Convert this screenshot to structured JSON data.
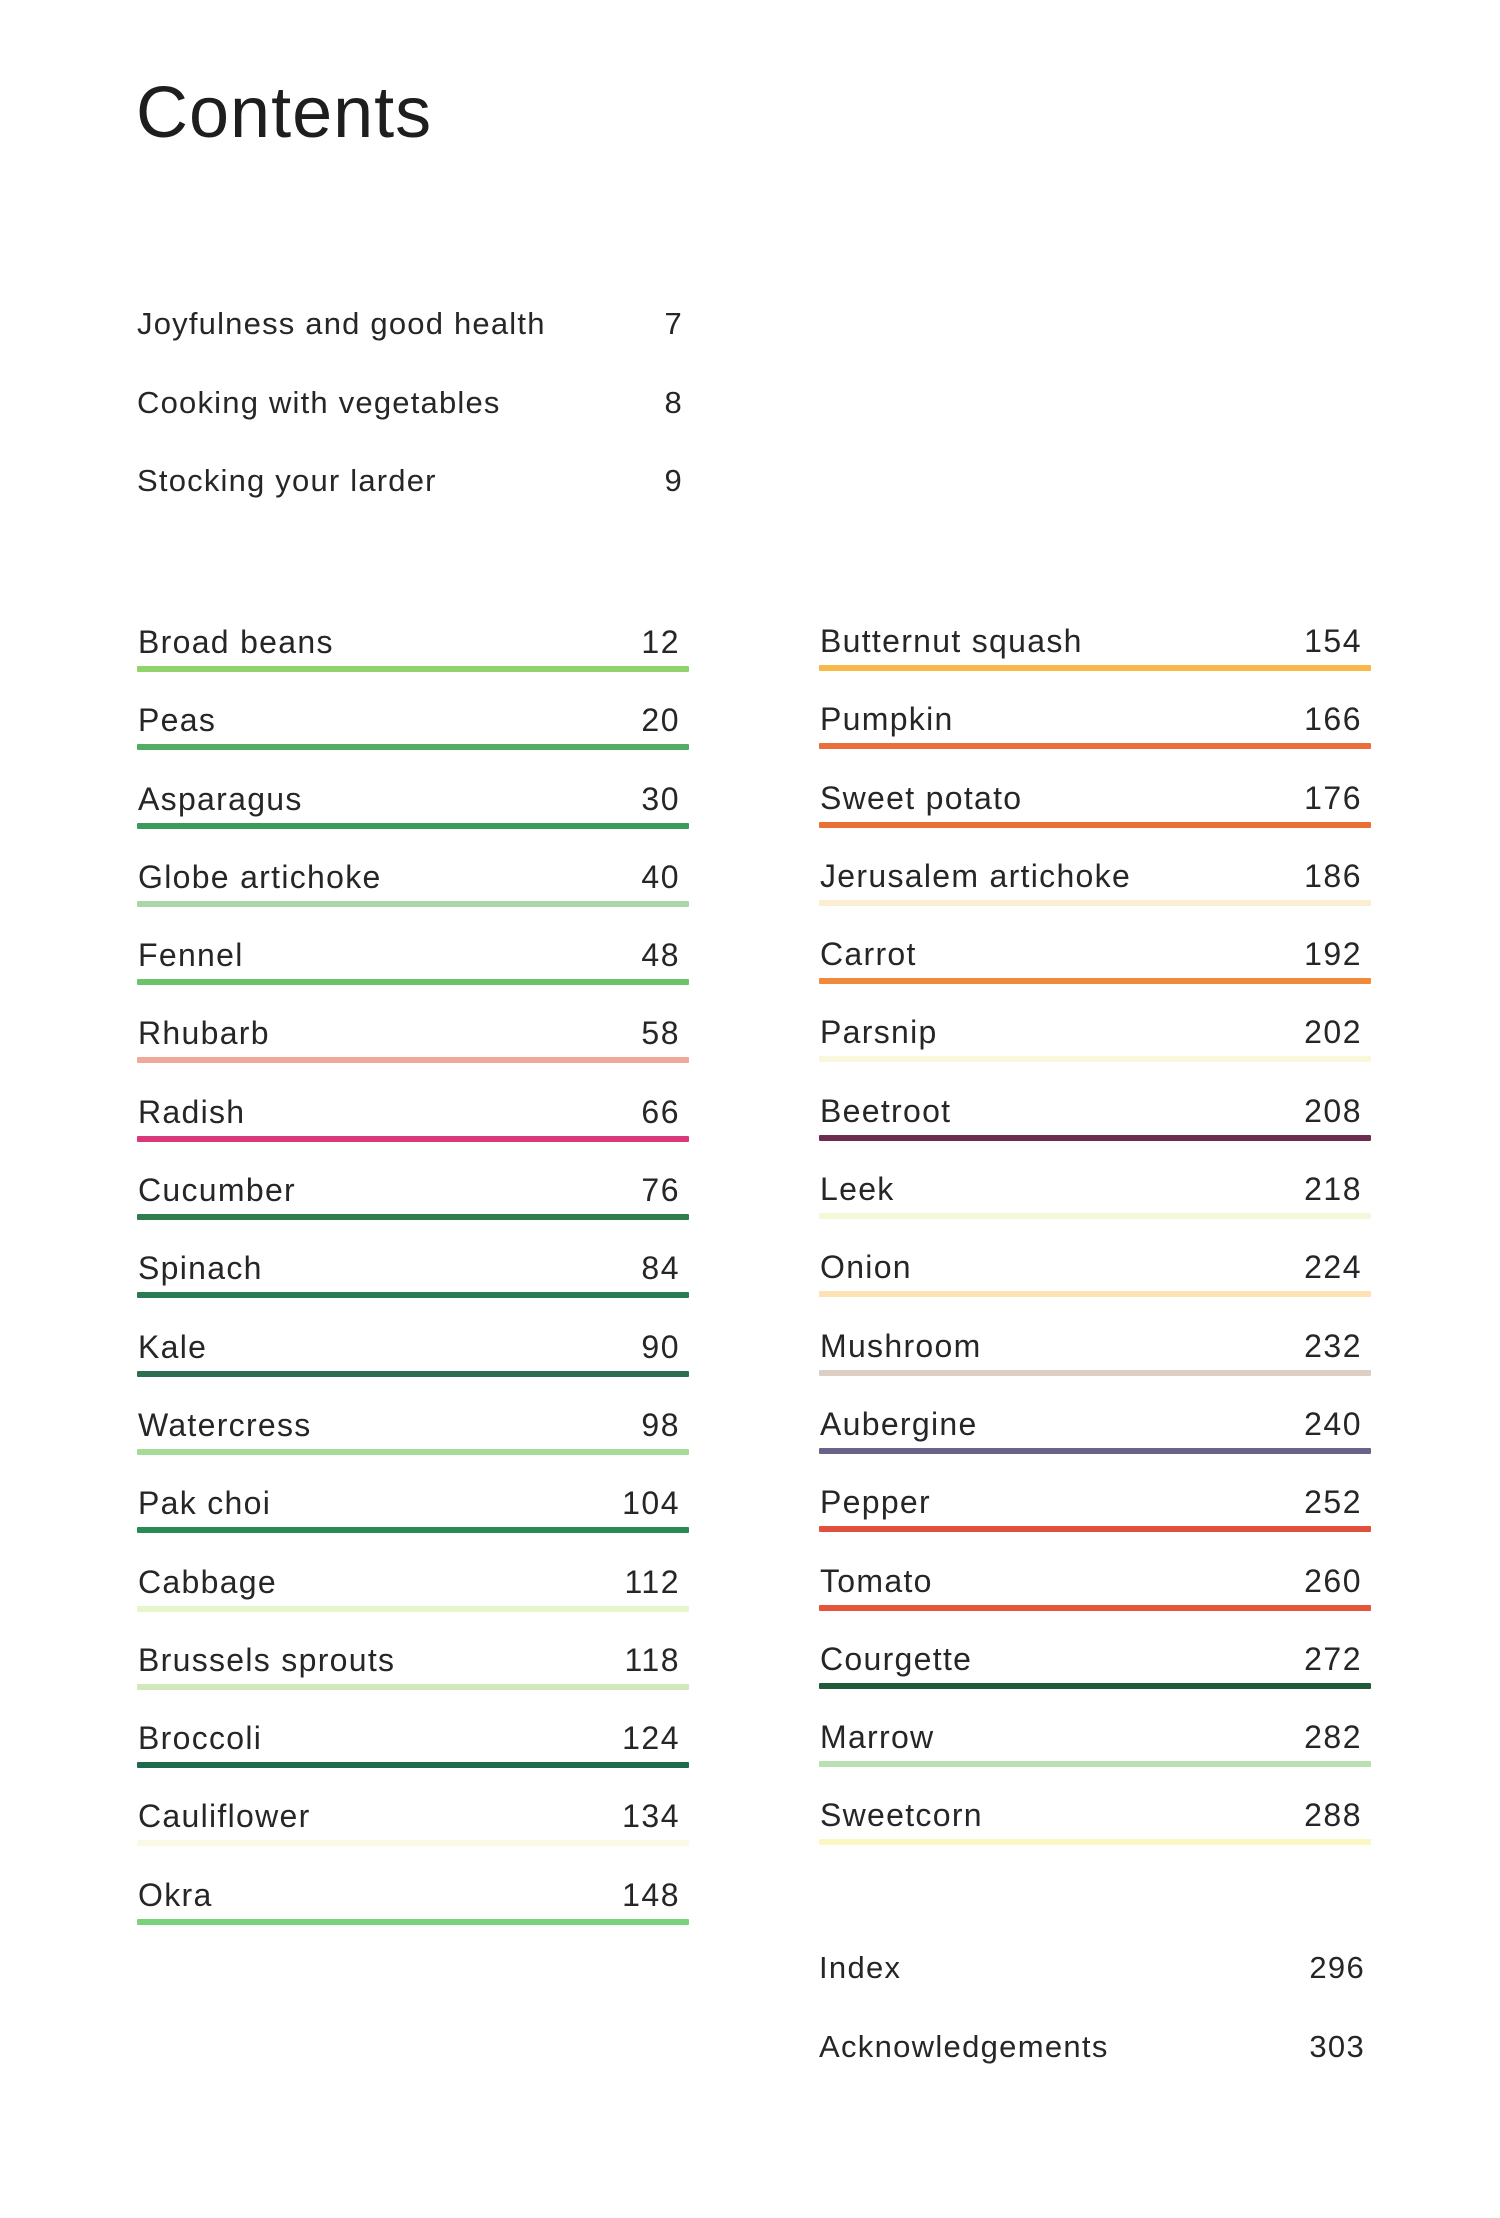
{
  "title": "Contents",
  "intro": [
    {
      "label": "Joyfulness and good health",
      "page": "7"
    },
    {
      "label": "Cooking with vegetables",
      "page": "8"
    },
    {
      "label": "Stocking your larder",
      "page": "9"
    }
  ],
  "left_column": [
    {
      "label": "Broad beans",
      "page": "12",
      "color": "#8fd36a"
    },
    {
      "label": "Peas",
      "page": "20",
      "color": "#4fae62"
    },
    {
      "label": "Asparagus",
      "page": "30",
      "color": "#3c9a5c"
    },
    {
      "label": "Globe artichoke",
      "page": "40",
      "color": "#a9d6a5"
    },
    {
      "label": "Fennel",
      "page": "48",
      "color": "#6cc46a"
    },
    {
      "label": "Rhubarb",
      "page": "58",
      "color": "#f0a89a"
    },
    {
      "label": "Radish",
      "page": "66",
      "color": "#d9387a"
    },
    {
      "label": "Cucumber",
      "page": "76",
      "color": "#2f7d4f"
    },
    {
      "label": "Spinach",
      "page": "84",
      "color": "#2a7a52"
    },
    {
      "label": "Kale",
      "page": "90",
      "color": "#2d6e50"
    },
    {
      "label": "Watercress",
      "page": "98",
      "color": "#a5db96"
    },
    {
      "label": "Pak choi",
      "page": "104",
      "color": "#2a8a55"
    },
    {
      "label": "Cabbage",
      "page": "112",
      "color": "#e6f5cc"
    },
    {
      "label": "Brussels sprouts",
      "page": "118",
      "color": "#cfe9bd"
    },
    {
      "label": "Broccoli",
      "page": "124",
      "color": "#1f6a4a"
    },
    {
      "label": "Cauliflower",
      "page": "134",
      "color": "#fbf8e6"
    },
    {
      "label": "Okra",
      "page": "148",
      "color": "#7bd27c"
    }
  ],
  "right_column": [
    {
      "label": "Butternut squash",
      "page": "154",
      "color": "#f8b84a"
    },
    {
      "label": "Pumpkin",
      "page": "166",
      "color": "#ea6f3c"
    },
    {
      "label": "Sweet potato",
      "page": "176",
      "color": "#ea6f32"
    },
    {
      "label": "Jerusalem artichoke",
      "page": "186",
      "color": "#fbeed0"
    },
    {
      "label": "Carrot",
      "page": "192",
      "color": "#f08a3a"
    },
    {
      "label": "Parsnip",
      "page": "202",
      "color": "#fbf7dd"
    },
    {
      "label": "Beetroot",
      "page": "208",
      "color": "#6e2d4e"
    },
    {
      "label": "Leek",
      "page": "218",
      "color": "#f5f7d8"
    },
    {
      "label": "Onion",
      "page": "224",
      "color": "#fde3b3"
    },
    {
      "label": "Mushroom",
      "page": "232",
      "color": "#dcd0c4"
    },
    {
      "label": "Aubergine",
      "page": "240",
      "color": "#6a6289"
    },
    {
      "label": "Pepper",
      "page": "252",
      "color": "#e0503c"
    },
    {
      "label": "Tomato",
      "page": "260",
      "color": "#e5553c"
    },
    {
      "label": "Courgette",
      "page": "272",
      "color": "#1f5a3a"
    },
    {
      "label": "Marrow",
      "page": "282",
      "color": "#b8e0b0"
    },
    {
      "label": "Sweetcorn",
      "page": "288",
      "color": "#fbf7c2"
    }
  ],
  "back_matter": [
    {
      "label": "Index",
      "page": "296"
    },
    {
      "label": "Acknowledgements",
      "page": "303"
    }
  ]
}
